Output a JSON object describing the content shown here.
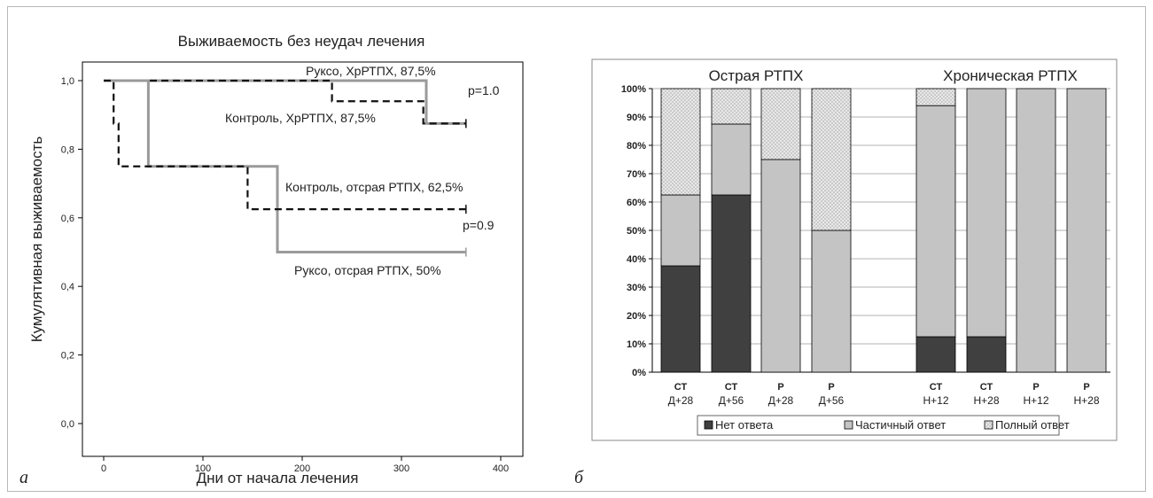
{
  "panels": {
    "left_letter": "а",
    "right_letter": "б"
  },
  "chart_data": [
    {
      "type": "line",
      "subtype": "kaplan-meier step",
      "title": "Выживаемость без неудач лечения",
      "xlabel": "Дни   от начала лечения",
      "ylabel": "Кумулятивная выживаемость",
      "xlim": [
        0,
        400
      ],
      "ylim": [
        0,
        1.0
      ],
      "xticks": [
        "0",
        "100",
        "200",
        "300",
        "400"
      ],
      "yticks": [
        "0,0",
        "0,2",
        "0,4",
        "0,6",
        "0,8",
        "1,0"
      ],
      "grid": false,
      "colors": {
        "ruxo": "#9a9a9a",
        "control": "#111111"
      },
      "series": [
        {
          "name": "Руксо, ХрРТПХ, 87,5%",
          "style": "solid-gray",
          "x": [
            0,
            325,
            365
          ],
          "y": [
            1.0,
            0.875,
            0.875
          ]
        },
        {
          "name": "Контроль, ХрРТПХ, 87,5%",
          "style": "dashed-black",
          "x": [
            0,
            230,
            322,
            365
          ],
          "y": [
            1.0,
            0.94,
            0.875,
            0.875
          ]
        },
        {
          "name": "Руксо, отсрая РТПХ, 50%",
          "style": "solid-gray",
          "x": [
            0,
            45,
            175,
            365
          ],
          "y": [
            1.0,
            0.75,
            0.5,
            0.5
          ]
        },
        {
          "name": "Контроль, отсрая РТПХ, 62,5%",
          "style": "dashed-black",
          "x": [
            0,
            10,
            15,
            145,
            365
          ],
          "y": [
            1.0,
            0.875,
            0.75,
            0.625,
            0.625
          ]
        }
      ],
      "annotations": [
        "p=1.0",
        "p=0.9"
      ]
    },
    {
      "type": "bar",
      "subtype": "stacked-percent",
      "ylim": [
        0,
        100
      ],
      "yticks": [
        "0%",
        "10%",
        "20%",
        "30%",
        "40%",
        "50%",
        "60%",
        "70%",
        "80%",
        "90%",
        "100%"
      ],
      "grid": true,
      "legend_position": "bottom",
      "groups": [
        {
          "label": "Острая РТПХ",
          "categories": [
            [
              "СТ",
              "Д+28"
            ],
            [
              "СТ",
              "Д+56"
            ],
            [
              "Р",
              "Д+28"
            ],
            [
              "Р",
              "Д+56"
            ]
          ]
        },
        {
          "label": "Хроническая РТПХ",
          "categories": [
            [
              "СТ",
              "Н+12"
            ],
            [
              "СТ",
              "Н+28"
            ],
            [
              "Р",
              "Н+12"
            ],
            [
              "Р",
              "Н+28"
            ]
          ]
        }
      ],
      "series": [
        {
          "name": "Нет ответа",
          "color": "#404040",
          "values": [
            37.5,
            62.5,
            0,
            0,
            12.5,
            12.5,
            0,
            0
          ]
        },
        {
          "name": "Частичный ответ",
          "color": "#c4c4c4",
          "values": [
            25,
            25,
            75,
            50,
            81.5,
            87.5,
            100,
            100
          ]
        },
        {
          "name": "Полный ответ",
          "color": "#e2e2e2",
          "values": [
            37.5,
            12.5,
            25,
            50,
            6,
            0,
            0,
            0
          ]
        }
      ]
    }
  ]
}
